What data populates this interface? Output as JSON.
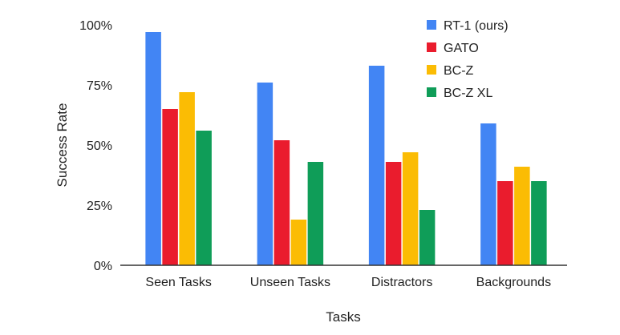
{
  "chart_data": {
    "type": "bar",
    "title": "",
    "xlabel": "Tasks",
    "ylabel": "Success Rate",
    "ylim": [
      0,
      100
    ],
    "yticks": [
      "0%",
      "25%",
      "50%",
      "75%",
      "100%"
    ],
    "ytick_values": [
      0,
      25,
      50,
      75,
      100
    ],
    "grid": false,
    "legend_position": "top-right",
    "categories": [
      "Seen Tasks",
      "Unseen Tasks",
      "Distractors",
      "Backgrounds"
    ],
    "series": [
      {
        "name": "RT-1 (ours)",
        "color": "#4285F4",
        "values": [
          97,
          76,
          83,
          59
        ]
      },
      {
        "name": "GATO",
        "color": "#EA1C2D",
        "values": [
          65,
          52,
          43,
          35
        ]
      },
      {
        "name": "BC-Z",
        "color": "#FBBC04",
        "values": [
          72,
          19,
          47,
          41
        ]
      },
      {
        "name": "BC-Z XL",
        "color": "#0F9D58",
        "values": [
          56,
          43,
          23,
          35
        ]
      }
    ]
  }
}
